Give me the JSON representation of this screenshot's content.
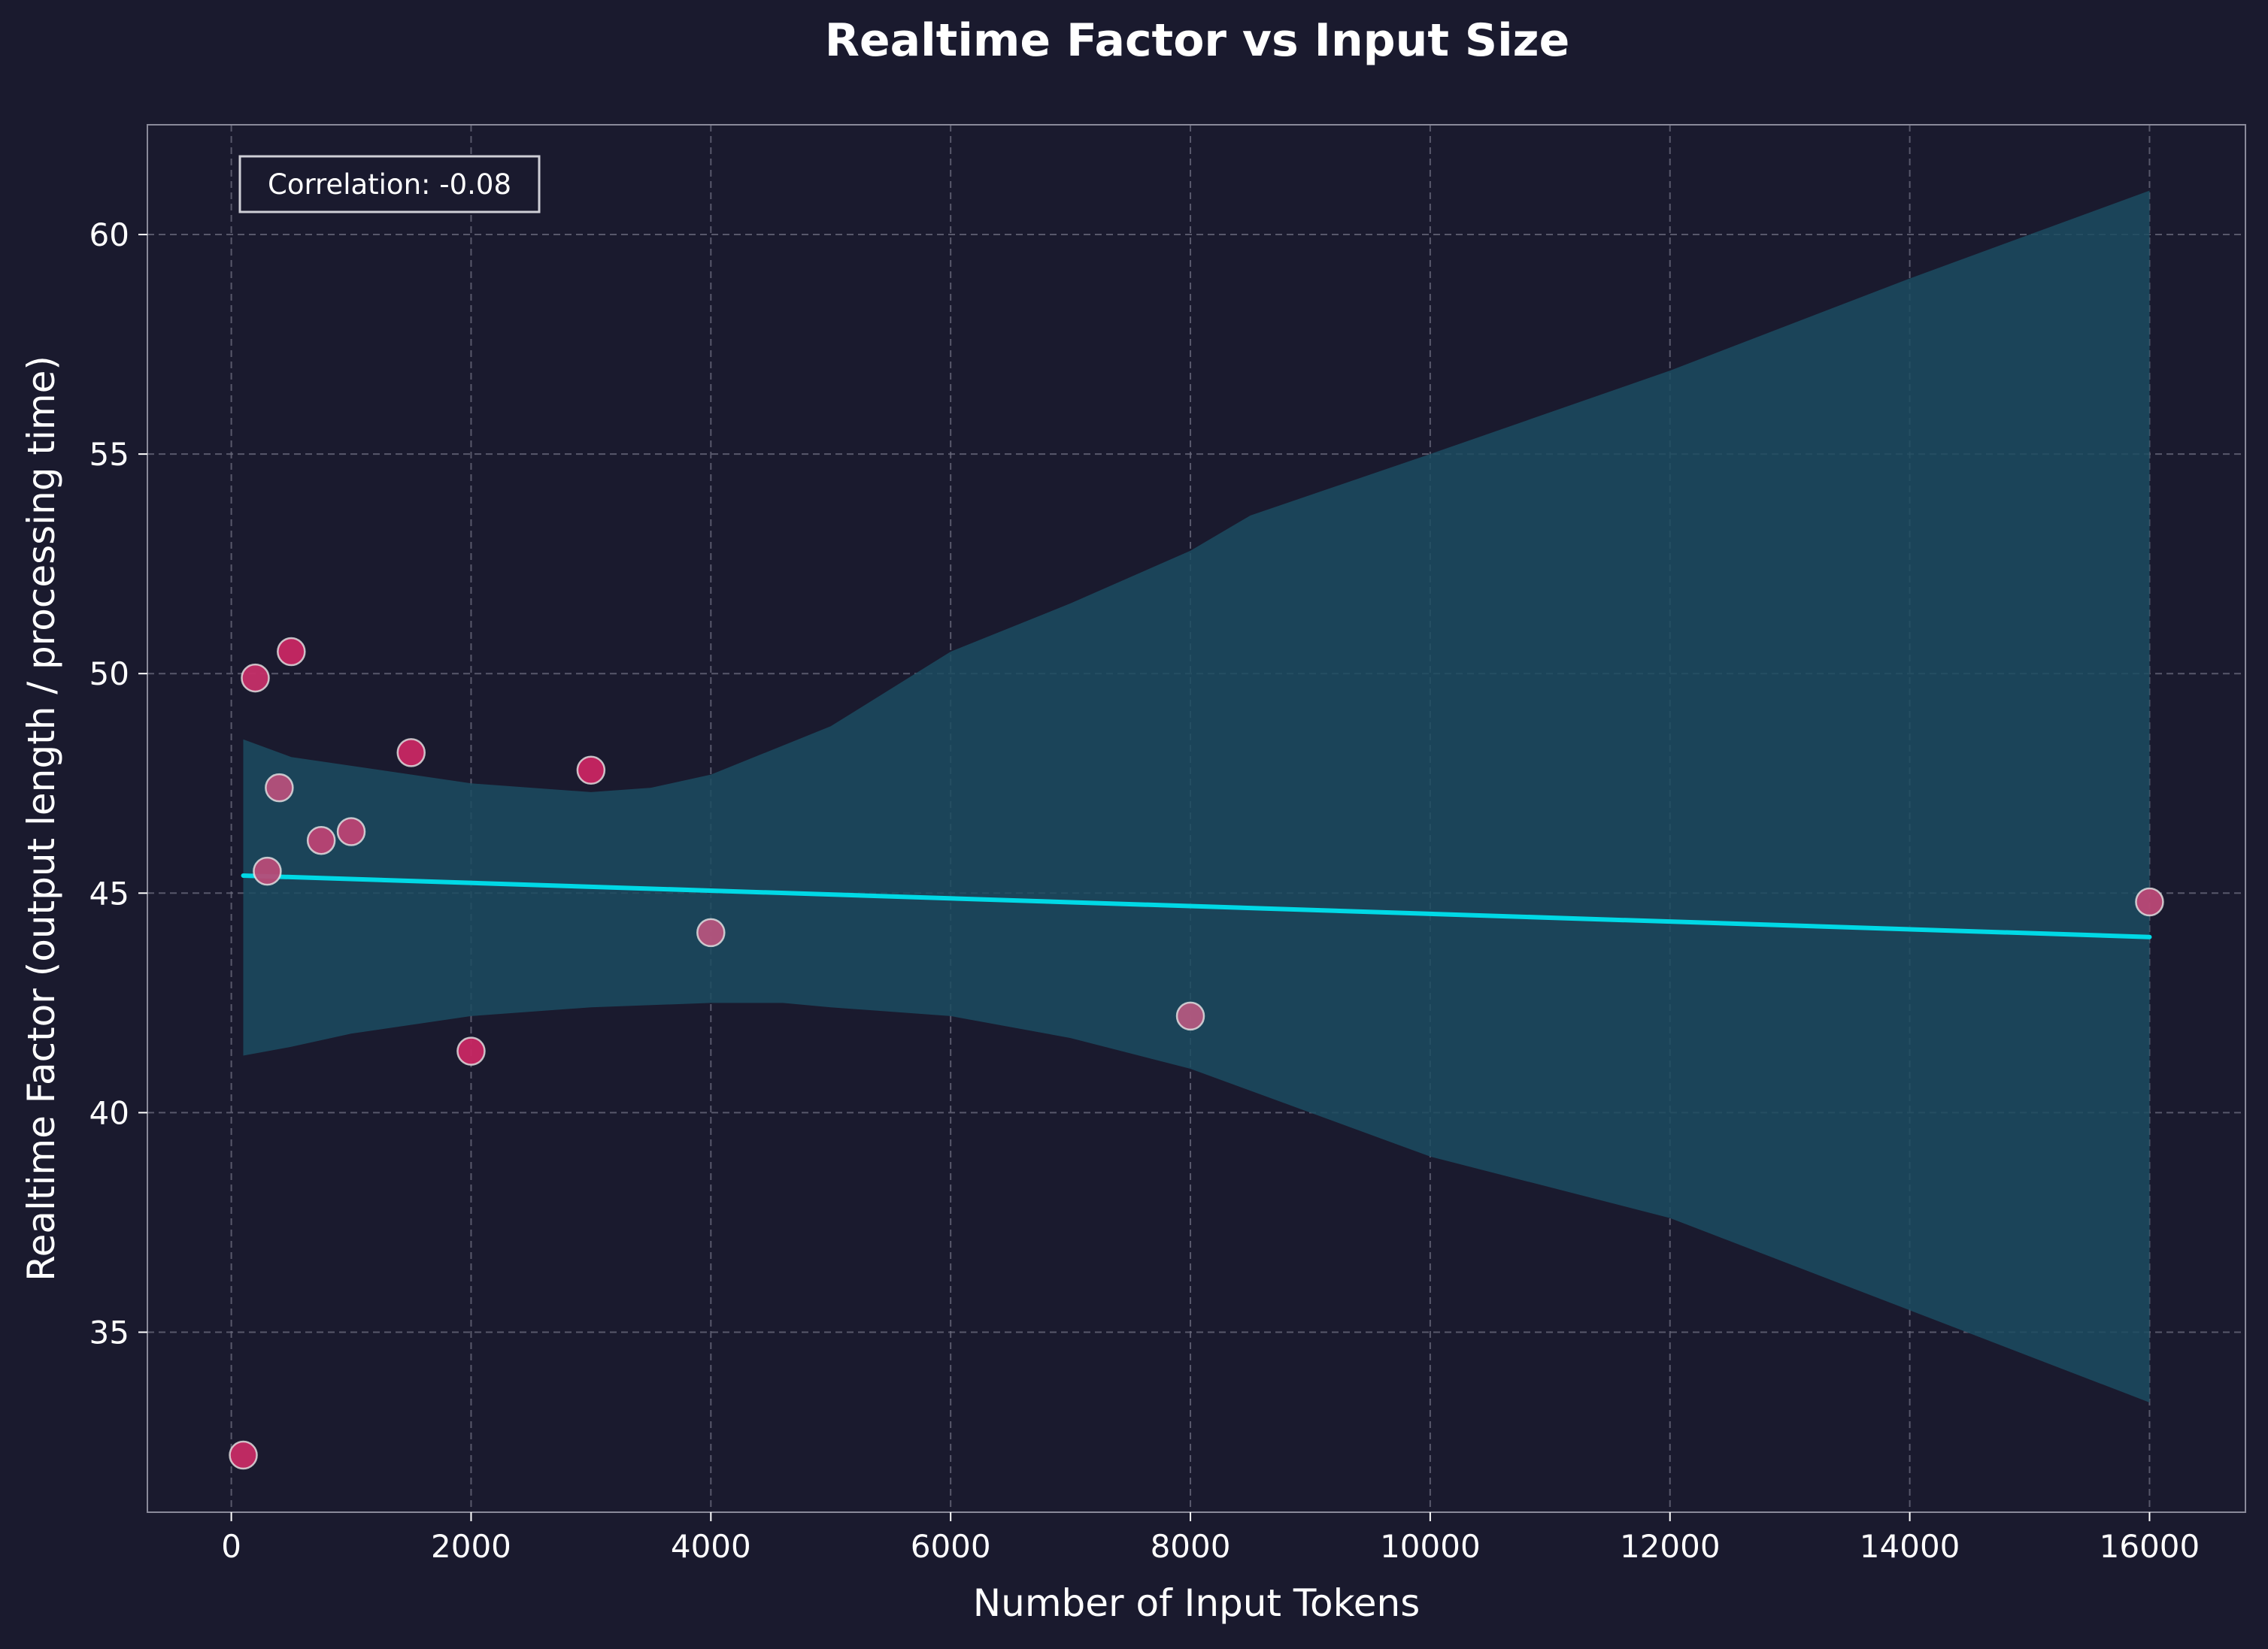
{
  "chart_data": {
    "type": "scatter",
    "title": "Realtime Factor vs Input Size",
    "xlabel": "Number of Input Tokens",
    "ylabel": "Realtime Factor (output length / processing time)",
    "xlim": [
      -700,
      16800
    ],
    "ylim": [
      30.9,
      62.5
    ],
    "xticks": [
      0,
      2000,
      4000,
      6000,
      8000,
      10000,
      12000,
      14000,
      16000
    ],
    "yticks": [
      35,
      40,
      45,
      50,
      55,
      60
    ],
    "grid": true,
    "annotation": "Correlation: -0.08",
    "points": [
      {
        "x": 100,
        "y": 32.2,
        "shade": 0.85
      },
      {
        "x": 200,
        "y": 49.9,
        "shade": 0.8
      },
      {
        "x": 300,
        "y": 45.5,
        "shade": 0.45
      },
      {
        "x": 400,
        "y": 47.4,
        "shade": 0.4
      },
      {
        "x": 500,
        "y": 50.5,
        "shade": 0.9
      },
      {
        "x": 750,
        "y": 46.2,
        "shade": 0.55
      },
      {
        "x": 1000,
        "y": 46.4,
        "shade": 0.55
      },
      {
        "x": 1500,
        "y": 48.2,
        "shade": 0.9
      },
      {
        "x": 2000,
        "y": 41.4,
        "shade": 0.9
      },
      {
        "x": 3000,
        "y": 47.8,
        "shade": 0.92
      },
      {
        "x": 4000,
        "y": 44.1,
        "shade": 0.35
      },
      {
        "x": 8000,
        "y": 42.2,
        "shade": 0.3
      },
      {
        "x": 16000,
        "y": 44.8,
        "shade": 0.5
      }
    ],
    "regression": {
      "x": [
        100,
        16000
      ],
      "y": [
        45.4,
        44.0
      ]
    },
    "ci_upper": [
      [
        100,
        48.5
      ],
      [
        500,
        48.1
      ],
      [
        1000,
        47.9
      ],
      [
        2000,
        47.5
      ],
      [
        3000,
        47.3
      ],
      [
        3500,
        47.4
      ],
      [
        4000,
        47.7
      ],
      [
        5000,
        48.8
      ],
      [
        6000,
        50.5
      ],
      [
        7000,
        51.6
      ],
      [
        8000,
        52.8
      ],
      [
        8500,
        53.6
      ],
      [
        10000,
        55.0
      ],
      [
        12000,
        56.9
      ],
      [
        14000,
        59.0
      ],
      [
        16000,
        61.0
      ]
    ],
    "ci_lower": [
      [
        100,
        41.3
      ],
      [
        500,
        41.5
      ],
      [
        1000,
        41.8
      ],
      [
        2000,
        42.2
      ],
      [
        3000,
        42.4
      ],
      [
        4000,
        42.5
      ],
      [
        4600,
        42.5
      ],
      [
        5000,
        42.4
      ],
      [
        6000,
        42.2
      ],
      [
        7000,
        41.7
      ],
      [
        8000,
        41.0
      ],
      [
        9000,
        40.0
      ],
      [
        10000,
        39.0
      ],
      [
        12000,
        37.6
      ],
      [
        14000,
        35.5
      ],
      [
        16000,
        33.4
      ]
    ],
    "colors": {
      "background": "#1a1a2e",
      "grid": "#6e6e80",
      "regression": "#00d9e6",
      "ci_band": "#1c4c60",
      "point_a": "#cc1f5e",
      "point_b": "#a8708e",
      "point_edge": "#e6e6e6",
      "text": "#ffffff"
    }
  }
}
